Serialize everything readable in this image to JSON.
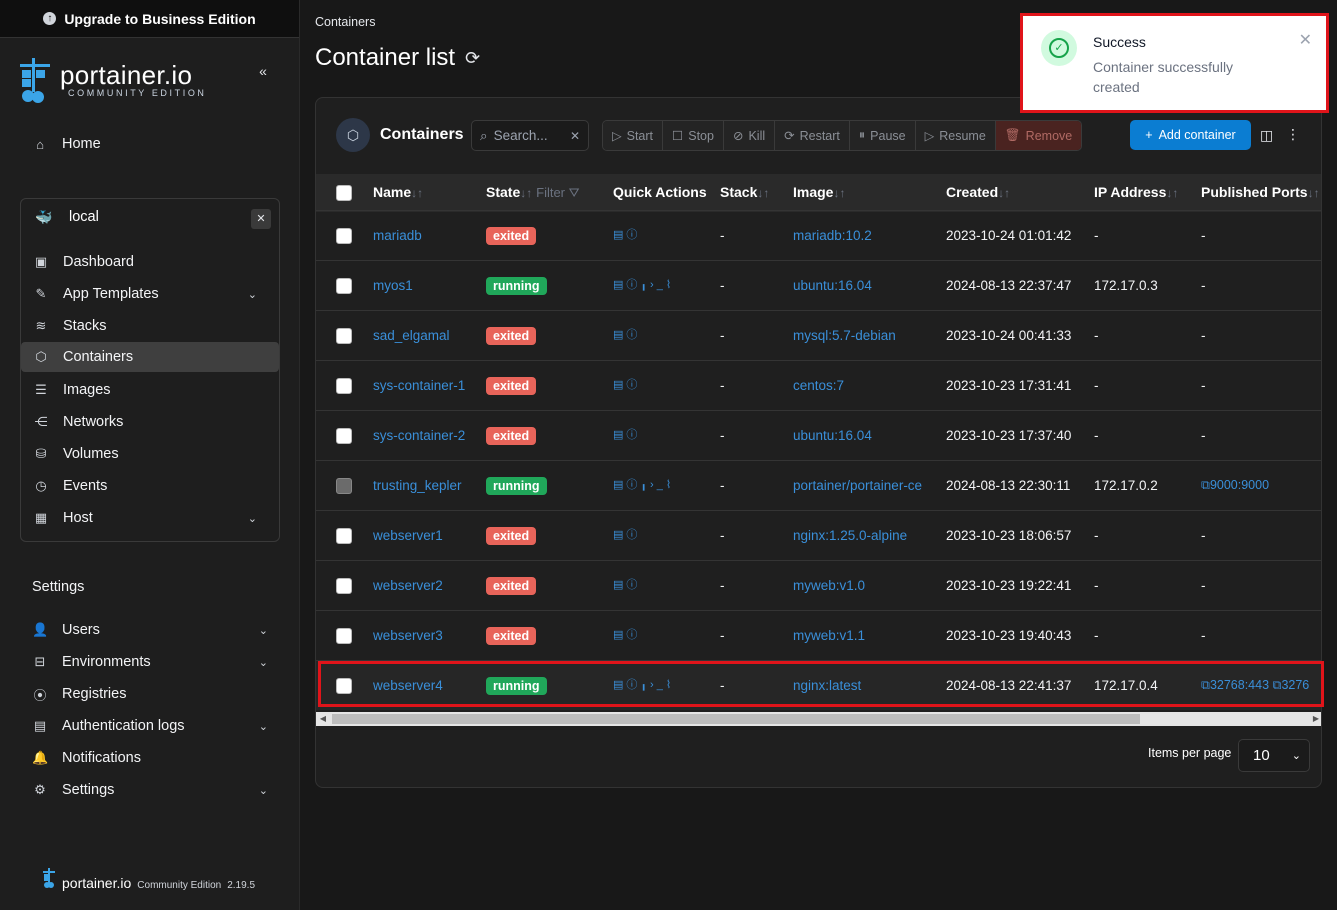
{
  "upgrade": {
    "label": "Upgrade to Business Edition"
  },
  "brand": {
    "name": "portainer.io",
    "edition": "COMMUNITY EDITION"
  },
  "nav": {
    "home": "Home"
  },
  "environment": {
    "name": "local",
    "items": [
      {
        "label": "Dashboard",
        "icon": "dashboard-icon"
      },
      {
        "label": "App Templates",
        "icon": "edit-icon",
        "expandable": true
      },
      {
        "label": "Stacks",
        "icon": "layers-icon"
      },
      {
        "label": "Containers",
        "icon": "cube-icon",
        "active": true
      },
      {
        "label": "Images",
        "icon": "list-icon"
      },
      {
        "label": "Networks",
        "icon": "share-icon"
      },
      {
        "label": "Volumes",
        "icon": "database-icon"
      },
      {
        "label": "Events",
        "icon": "clock-icon"
      },
      {
        "label": "Host",
        "icon": "server-icon",
        "expandable": true
      }
    ]
  },
  "settings": {
    "title": "Settings",
    "items": [
      {
        "label": "Users",
        "icon": "users-icon",
        "expandable": true
      },
      {
        "label": "Environments",
        "icon": "hdd-icon",
        "expandable": true
      },
      {
        "label": "Registries",
        "icon": "radio-icon",
        "expandable": false
      },
      {
        "label": "Authentication logs",
        "icon": "file-icon",
        "expandable": true
      },
      {
        "label": "Notifications",
        "icon": "bell-icon",
        "expandable": false
      },
      {
        "label": "Settings",
        "icon": "gear-icon",
        "expandable": true
      }
    ]
  },
  "footer": {
    "name": "portainer.io",
    "edition": "Community Edition",
    "version": "2.19.5"
  },
  "breadcrumb": "Containers",
  "page_title": "Container list",
  "panel": {
    "title": "Containers",
    "search_placeholder": "Search...",
    "actions": {
      "start": "Start",
      "stop": "Stop",
      "kill": "Kill",
      "restart": "Restart",
      "pause": "Pause",
      "resume": "Resume",
      "remove": "Remove"
    },
    "add_label": "Add container"
  },
  "columns": {
    "name": "Name",
    "state": "State",
    "filter": "Filter",
    "quick_actions": "Quick Actions",
    "stack": "Stack",
    "image": "Image",
    "created": "Created",
    "ip": "IP Address",
    "ports": "Published Ports"
  },
  "rows": [
    {
      "name": "mariadb",
      "state": "exited",
      "stack": "-",
      "image": "mariadb:10.2",
      "created": "2023-10-24 01:01:42",
      "ip": "-",
      "ports": "-"
    },
    {
      "name": "myos1",
      "state": "running",
      "stack": "-",
      "image": "ubuntu:16.04",
      "created": "2024-08-13 22:37:47",
      "ip": "172.17.0.3",
      "ports": "-"
    },
    {
      "name": "sad_elgamal",
      "state": "exited",
      "stack": "-",
      "image": "mysql:5.7-debian",
      "created": "2023-10-24 00:41:33",
      "ip": "-",
      "ports": "-"
    },
    {
      "name": "sys-container-1",
      "state": "exited",
      "stack": "-",
      "image": "centos:7",
      "created": "2023-10-23 17:31:41",
      "ip": "-",
      "ports": "-"
    },
    {
      "name": "sys-container-2",
      "state": "exited",
      "stack": "-",
      "image": "ubuntu:16.04",
      "created": "2023-10-23 17:37:40",
      "ip": "-",
      "ports": "-"
    },
    {
      "name": "trusting_kepler",
      "state": "running",
      "stack": "-",
      "image": "portainer/portainer-ce",
      "created": "2024-08-13 22:30:11",
      "ip": "172.17.0.2",
      "ports": "9000:9000"
    },
    {
      "name": "webserver1",
      "state": "exited",
      "stack": "-",
      "image": "nginx:1.25.0-alpine",
      "created": "2023-10-23 18:06:57",
      "ip": "-",
      "ports": "-"
    },
    {
      "name": "webserver2",
      "state": "exited",
      "stack": "-",
      "image": "myweb:v1.0",
      "created": "2023-10-23 19:22:41",
      "ip": "-",
      "ports": "-"
    },
    {
      "name": "webserver3",
      "state": "exited",
      "stack": "-",
      "image": "myweb:v1.1",
      "created": "2023-10-23 19:40:43",
      "ip": "-",
      "ports": "-"
    },
    {
      "name": "webserver4",
      "state": "running",
      "stack": "-",
      "image": "nginx:latest",
      "created": "2024-08-13 22:41:37",
      "ip": "172.17.0.4",
      "ports": "32768:443",
      "ports_extra": "3276"
    }
  ],
  "pagination": {
    "label": "Items per page",
    "value": "10"
  },
  "toast": {
    "title": "Success",
    "message": "Container successfully created"
  }
}
